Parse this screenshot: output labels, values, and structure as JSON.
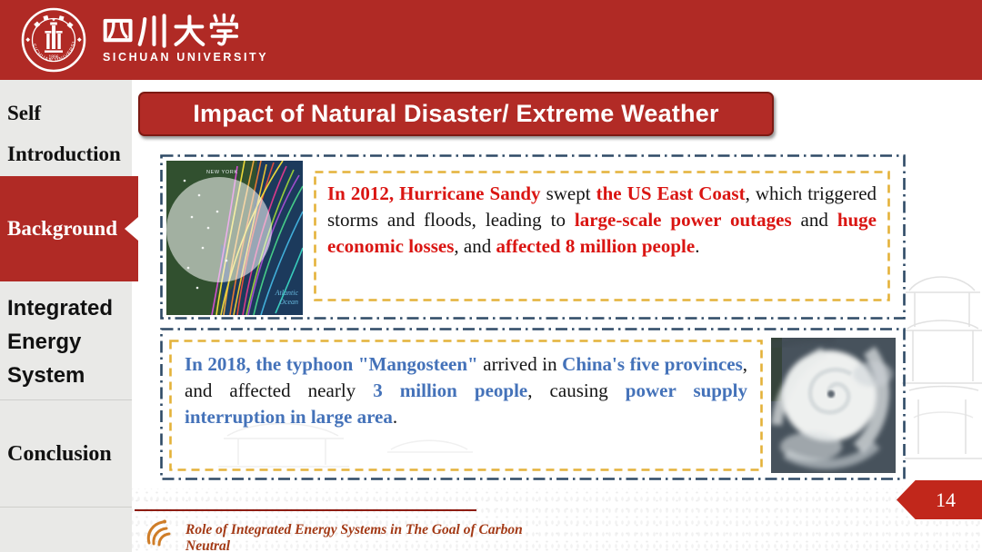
{
  "header": {
    "university_cn": "四川大学",
    "university_en": "SICHUAN UNIVERSITY",
    "seal_text": "SICHUAN UNIVERSITY",
    "emblem_year": "1896",
    "bg_color": "#b02a25"
  },
  "sidebar": {
    "items": [
      {
        "lines": [
          "Self",
          "Introduction"
        ],
        "active": false
      },
      {
        "lines": [
          "Background"
        ],
        "active": true
      },
      {
        "lines": [
          "Integrated",
          "Energy",
          "System"
        ],
        "active": false
      },
      {
        "lines": [
          "Conclusion"
        ],
        "active": false
      }
    ]
  },
  "main": {
    "title": "Impact of Natural Disaster/ Extreme Weather",
    "box1": {
      "accent_color": "#da1512",
      "segments": [
        {
          "t": "In 2012, Hurricane Sandy",
          "em": true
        },
        {
          "t": " swept ",
          "em": false
        },
        {
          "t": "the US East Coast",
          "em": true
        },
        {
          "t": ", which triggered storms and floods, leading to ",
          "em": false
        },
        {
          "t": "large-scale power outages",
          "em": true
        },
        {
          "t": " and ",
          "em": false
        },
        {
          "t": "huge economic losses",
          "em": true
        },
        {
          "t": ",  and ",
          "em": false
        },
        {
          "t": "affected 8 million people",
          "em": true
        },
        {
          "t": ".",
          "em": false
        }
      ],
      "map": {
        "city_label": "NEW YORK",
        "ocean_label_1": "Atlantic",
        "ocean_label_2": "Ocean"
      }
    },
    "box2": {
      "accent_color": "#4472b9",
      "segments": [
        {
          "t": "In 2018, the typhoon \"Mangosteen\"",
          "em": true
        },
        {
          "t": " arrived in ",
          "em": false
        },
        {
          "t": "China's five provinces",
          "em": true
        },
        {
          "t": ", and affected nearly ",
          "em": false
        },
        {
          "t": "3 million people",
          "em": true
        },
        {
          "t": ", causing ",
          "em": false
        },
        {
          "t": "power supply interruption in large area",
          "em": true
        },
        {
          "t": ".",
          "em": false
        }
      ]
    },
    "border_colors": {
      "outer_dash": "#2e4a66",
      "inner_dash": "#e4b23a"
    }
  },
  "footer": {
    "page_number": "14",
    "caption": "Role of Integrated Energy Systems in The Goal of Carbon Neutral"
  }
}
